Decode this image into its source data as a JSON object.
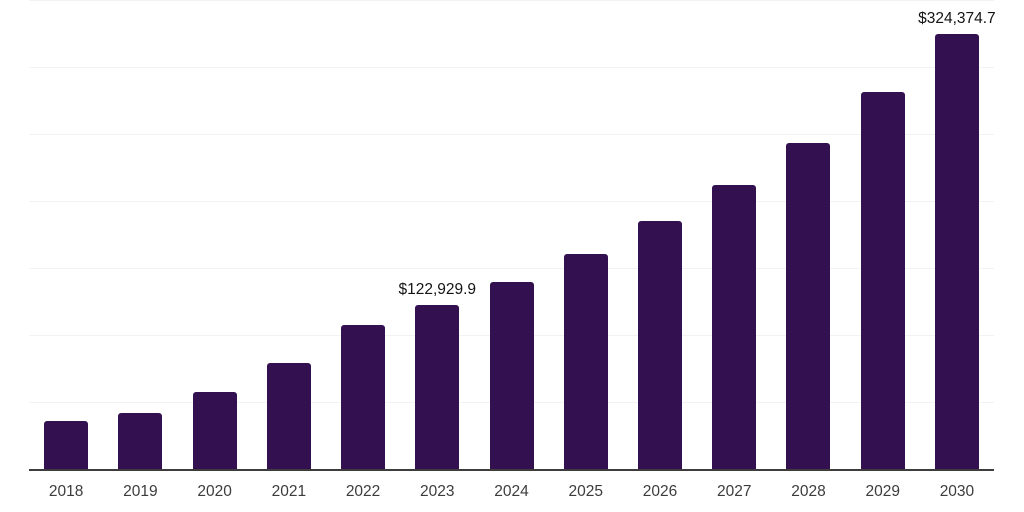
{
  "chart_data": {
    "type": "bar",
    "title": "",
    "xlabel": "",
    "ylabel": "",
    "categories": [
      "2018",
      "2019",
      "2020",
      "2021",
      "2022",
      "2023",
      "2024",
      "2025",
      "2026",
      "2027",
      "2028",
      "2029",
      "2030"
    ],
    "values": [
      36800,
      42500,
      57900,
      80000,
      108300,
      122929.9,
      140100,
      161200,
      185500,
      212300,
      243600,
      281600,
      324374.7
    ],
    "annotations": [
      {
        "category": "2023",
        "text": "$122,929.9"
      },
      {
        "category": "2030",
        "text": "$324,374.7"
      }
    ],
    "ylim": [
      0,
      350000
    ],
    "grid_step": 50000,
    "gridlines": "horizontal",
    "y_tick_labels_visible": false,
    "legend_position": "none",
    "colors": {
      "bar": "#331150",
      "axis_line": "#3d3d3d",
      "gridline": "#f2f2f2",
      "tick_label": "#3c3c3c",
      "data_label": "#141414",
      "background": "#ffffff"
    }
  }
}
